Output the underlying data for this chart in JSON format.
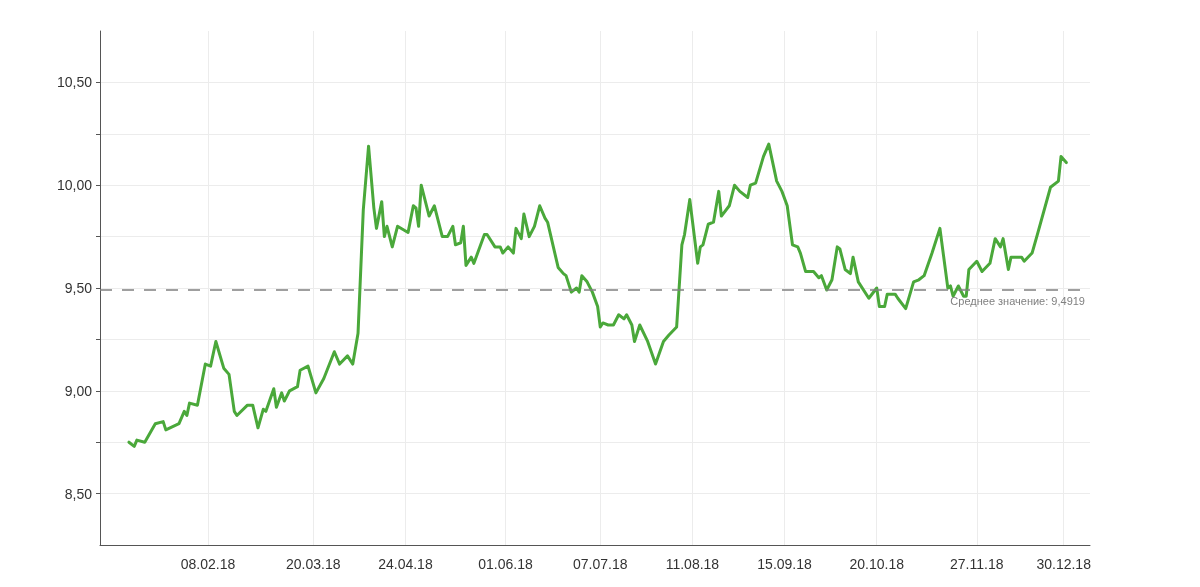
{
  "chart_data": {
    "type": "line",
    "x": [
      "2018-01-09",
      "2018-01-11",
      "2018-01-12",
      "2018-01-15",
      "2018-01-19",
      "2018-01-22",
      "2018-01-23",
      "2018-01-28",
      "2018-01-30",
      "2018-01-31",
      "2018-02-01",
      "2018-02-04",
      "2018-02-07",
      "2018-02-09",
      "2018-02-11",
      "2018-02-14",
      "2018-02-16",
      "2018-02-18",
      "2018-02-19",
      "2018-02-23",
      "2018-02-25",
      "2018-02-27",
      "2018-03-01",
      "2018-03-02",
      "2018-03-05",
      "2018-03-06",
      "2018-03-08",
      "2018-03-09",
      "2018-03-11",
      "2018-03-14",
      "2018-03-15",
      "2018-03-18",
      "2018-03-21",
      "2018-03-24",
      "2018-03-28",
      "2018-03-30",
      "2018-04-02",
      "2018-04-04",
      "2018-04-06",
      "2018-04-08",
      "2018-04-10",
      "2018-04-12",
      "2018-04-13",
      "2018-04-15",
      "2018-04-16",
      "2018-04-17",
      "2018-04-19",
      "2018-04-21",
      "2018-04-25",
      "2018-04-27",
      "2018-04-28",
      "2018-04-29",
      "2018-04-30",
      "2018-05-03",
      "2018-05-05",
      "2018-05-08",
      "2018-05-10",
      "2018-05-12",
      "2018-05-13",
      "2018-05-15",
      "2018-05-16",
      "2018-05-17",
      "2018-05-19",
      "2018-05-20",
      "2018-05-24",
      "2018-05-25",
      "2018-05-28",
      "2018-05-30",
      "2018-05-31",
      "2018-06-02",
      "2018-06-04",
      "2018-06-05",
      "2018-06-07",
      "2018-06-08",
      "2018-06-10",
      "2018-06-12",
      "2018-06-14",
      "2018-06-16",
      "2018-06-17",
      "2018-06-21",
      "2018-06-23",
      "2018-06-24",
      "2018-06-26",
      "2018-06-28",
      "2018-06-29",
      "2018-06-30",
      "2018-07-02",
      "2018-07-04",
      "2018-07-06",
      "2018-07-07",
      "2018-07-08",
      "2018-07-10",
      "2018-07-12",
      "2018-07-14",
      "2018-07-16",
      "2018-07-17",
      "2018-07-19",
      "2018-07-20",
      "2018-07-22",
      "2018-07-25",
      "2018-07-28",
      "2018-07-31",
      "2018-08-02",
      "2018-08-05",
      "2018-08-07",
      "2018-08-08",
      "2018-08-10",
      "2018-08-13",
      "2018-08-14",
      "2018-08-15",
      "2018-08-17",
      "2018-08-19",
      "2018-08-21",
      "2018-08-22",
      "2018-08-25",
      "2018-08-27",
      "2018-08-29",
      "2018-09-01",
      "2018-09-02",
      "2018-09-04",
      "2018-09-07",
      "2018-09-09",
      "2018-09-12",
      "2018-09-14",
      "2018-09-16",
      "2018-09-18",
      "2018-09-20",
      "2018-09-21",
      "2018-09-23",
      "2018-09-26",
      "2018-09-28",
      "2018-09-29",
      "2018-10-01",
      "2018-10-03",
      "2018-10-05",
      "2018-10-06",
      "2018-10-08",
      "2018-10-10",
      "2018-10-11",
      "2018-10-13",
      "2018-10-17",
      "2018-10-20",
      "2018-10-21",
      "2018-10-23",
      "2018-10-24",
      "2018-10-27",
      "2018-10-28",
      "2018-10-31",
      "2018-11-03",
      "2018-11-05",
      "2018-11-07",
      "2018-11-10",
      "2018-11-13",
      "2018-11-16",
      "2018-11-17",
      "2018-11-18",
      "2018-11-20",
      "2018-11-22",
      "2018-11-23",
      "2018-11-24",
      "2018-11-27",
      "2018-11-29",
      "2018-12-02",
      "2018-12-04",
      "2018-12-06",
      "2018-12-07",
      "2018-12-09",
      "2018-12-10",
      "2018-12-14",
      "2018-12-15",
      "2018-12-18",
      "2018-12-20",
      "2018-12-25",
      "2018-12-28",
      "2018-12-29",
      "2018-12-31"
    ],
    "series": [
      {
        "color": "#4aa83a",
        "values": [
          8.75,
          8.73,
          8.76,
          8.75,
          8.84,
          8.85,
          8.81,
          8.84,
          8.9,
          8.88,
          8.94,
          8.93,
          9.13,
          9.12,
          9.24,
          9.11,
          9.08,
          8.9,
          8.88,
          8.93,
          8.93,
          8.82,
          8.91,
          8.9,
          9.01,
          8.92,
          8.99,
          8.95,
          9.0,
          9.02,
          9.1,
          9.12,
          8.99,
          9.06,
          9.19,
          9.13,
          9.17,
          9.13,
          9.28,
          9.88,
          10.19,
          9.89,
          9.79,
          9.92,
          9.75,
          9.8,
          9.7,
          9.8,
          9.77,
          9.9,
          9.89,
          9.8,
          10.0,
          9.85,
          9.9,
          9.75,
          9.75,
          9.8,
          9.71,
          9.72,
          9.8,
          9.61,
          9.65,
          9.62,
          9.76,
          9.76,
          9.7,
          9.7,
          9.67,
          9.7,
          9.67,
          9.79,
          9.74,
          9.86,
          9.75,
          9.8,
          9.9,
          9.84,
          9.82,
          9.6,
          9.57,
          9.56,
          9.48,
          9.5,
          9.48,
          9.56,
          9.53,
          9.48,
          9.41,
          9.31,
          9.33,
          9.32,
          9.32,
          9.37,
          9.35,
          9.37,
          9.32,
          9.24,
          9.32,
          9.24,
          9.13,
          9.24,
          9.27,
          9.31,
          9.71,
          9.76,
          9.93,
          9.62,
          9.7,
          9.71,
          9.81,
          9.82,
          9.97,
          9.85,
          9.9,
          10.0,
          9.97,
          9.94,
          10.0,
          10.01,
          10.14,
          10.2,
          10.02,
          9.97,
          9.9,
          9.71,
          9.7,
          9.67,
          9.58,
          9.58,
          9.55,
          9.56,
          9.49,
          9.54,
          9.7,
          9.69,
          9.59,
          9.57,
          9.65,
          9.53,
          9.45,
          9.5,
          9.41,
          9.41,
          9.47,
          9.47,
          9.45,
          9.4,
          9.53,
          9.54,
          9.56,
          9.67,
          9.79,
          9.5,
          9.51,
          9.46,
          9.51,
          9.46,
          9.46,
          9.59,
          9.63,
          9.58,
          9.62,
          9.74,
          9.7,
          9.74,
          9.59,
          9.65,
          9.65,
          9.63,
          9.67,
          9.76,
          9.99,
          10.02,
          10.14,
          10.11
        ]
      }
    ],
    "xlim": [
      "2017-12-29",
      "2019-01-09"
    ],
    "xticks": [
      {
        "value": "2018-02-08",
        "label": "08.02.18"
      },
      {
        "value": "2018-03-20",
        "label": "20.03.18"
      },
      {
        "value": "2018-04-24",
        "label": "24.04.18"
      },
      {
        "value": "2018-06-01",
        "label": "01.06.18"
      },
      {
        "value": "2018-07-07",
        "label": "07.07.18"
      },
      {
        "value": "2018-08-11",
        "label": "11.08.18"
      },
      {
        "value": "2018-09-15",
        "label": "15.09.18"
      },
      {
        "value": "2018-10-20",
        "label": "20.10.18"
      },
      {
        "value": "2018-11-27",
        "label": "27.11.18"
      },
      {
        "value": "2018-12-30",
        "label": "30.12.18"
      }
    ],
    "ylim": [
      8.25,
      10.75
    ],
    "yticks": [
      {
        "value": 8.5,
        "label": "8,50"
      },
      {
        "value": 8.75,
        "label": null
      },
      {
        "value": 9,
        "label": "9,00"
      },
      {
        "value": 9.25,
        "label": null
      },
      {
        "value": 9.5,
        "label": "9,50"
      },
      {
        "value": 9.75,
        "label": null
      },
      {
        "value": 10,
        "label": "10,00"
      },
      {
        "value": 10.25,
        "label": null
      },
      {
        "value": 10.5,
        "label": "10,50"
      }
    ],
    "ref_lines": [
      {
        "axis": "y",
        "value": 9.4919,
        "label": "Среднее значение: 9,4919",
        "color": "#808080",
        "line_style": "dashed"
      }
    ],
    "grid": true,
    "marker": "none",
    "line_style": "solid"
  }
}
